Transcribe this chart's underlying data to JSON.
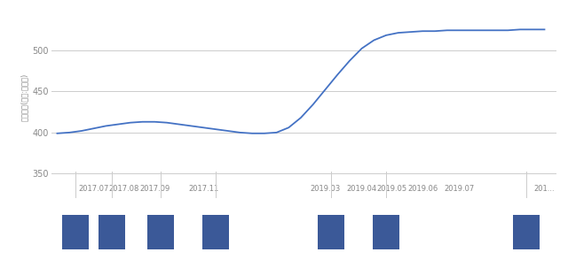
{
  "ylabel": "거래금액(단위:백만원)",
  "ylim": [
    340,
    545
  ],
  "yticks": [
    350,
    400,
    450,
    500
  ],
  "line_color": "#4472c4",
  "background_color": "#ffffff",
  "grid_color": "#cccccc",
  "x_tick_labels": [
    "2017.07",
    "2017.08",
    "2017.09",
    "2017.11",
    "2019.03",
    "2019.04",
    "2019.05",
    "2019.06",
    "2019.07",
    "201..."
  ],
  "bar_color": "#3b5998",
  "curve_x": [
    0,
    1,
    2,
    3,
    4,
    5,
    6,
    7,
    8,
    9,
    10,
    11,
    12,
    13,
    14,
    15,
    16,
    17,
    18,
    19,
    20,
    21,
    22,
    23,
    24,
    25,
    26,
    27,
    28,
    29,
    30,
    31,
    32,
    33,
    34,
    35,
    36,
    37,
    38,
    39,
    40
  ],
  "curve_y": [
    399,
    400,
    402,
    405,
    408,
    410,
    412,
    413,
    413,
    412,
    410,
    408,
    406,
    404,
    402,
    400,
    399,
    399,
    400,
    406,
    418,
    434,
    452,
    470,
    487,
    502,
    512,
    518,
    521,
    522,
    523,
    523,
    524,
    524,
    524,
    524,
    524,
    524,
    525,
    525,
    525
  ],
  "xlim": [
    -0.5,
    41
  ],
  "x_tick_pos": [
    3,
    5.5,
    8,
    12,
    22,
    25,
    27.5,
    30,
    33,
    40
  ],
  "bar_x": [
    1.5,
    4.5,
    8.5,
    13.0,
    22.5,
    27.0,
    38.5
  ],
  "bar_width": 2.2,
  "bar_height": 1.0
}
